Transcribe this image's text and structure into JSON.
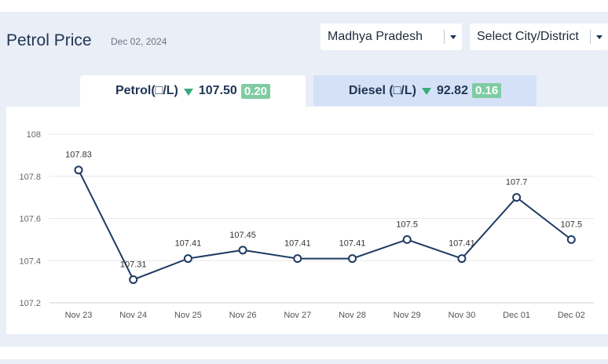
{
  "header": {
    "title": "Petrol Price",
    "date": "Dec 02, 2024"
  },
  "filters": {
    "state": "Madhya Pradesh",
    "city_placeholder": "Select City/District"
  },
  "tabs": [
    {
      "label": "Petrol(□/L)",
      "price": "107.50",
      "change": "0.20",
      "trend": "down"
    },
    {
      "label": "Diesel (□/L)",
      "price": "92.82",
      "change": "0.16",
      "trend": "down"
    }
  ],
  "colors": {
    "line": "#1f3b63",
    "badge": "#7fcca3",
    "trend_down": "#3aa97e",
    "active_tab": "#ffffff",
    "inactive_tab": "#d5e1f6"
  },
  "chart_data": {
    "type": "line",
    "x": [
      "Nov 23",
      "Nov 24",
      "Nov 25",
      "Nov 26",
      "Nov 27",
      "Nov 28",
      "Nov 29",
      "Nov 30",
      "Dec 01",
      "Dec 02"
    ],
    "series": [
      {
        "values": [
          107.83,
          107.31,
          107.41,
          107.45,
          107.41,
          107.41,
          107.5,
          107.41,
          107.7,
          107.5
        ]
      }
    ],
    "data_labels": [
      "107.83",
      "107.31",
      "107.41",
      "107.45",
      "107.41",
      "107.41",
      "107.5",
      "107.41",
      "107.7",
      "107.5"
    ],
    "y_ticks": [
      "107.2",
      "107.4",
      "107.6",
      "107.8",
      "108"
    ],
    "ylim": [
      107.2,
      108
    ],
    "grid": true
  }
}
